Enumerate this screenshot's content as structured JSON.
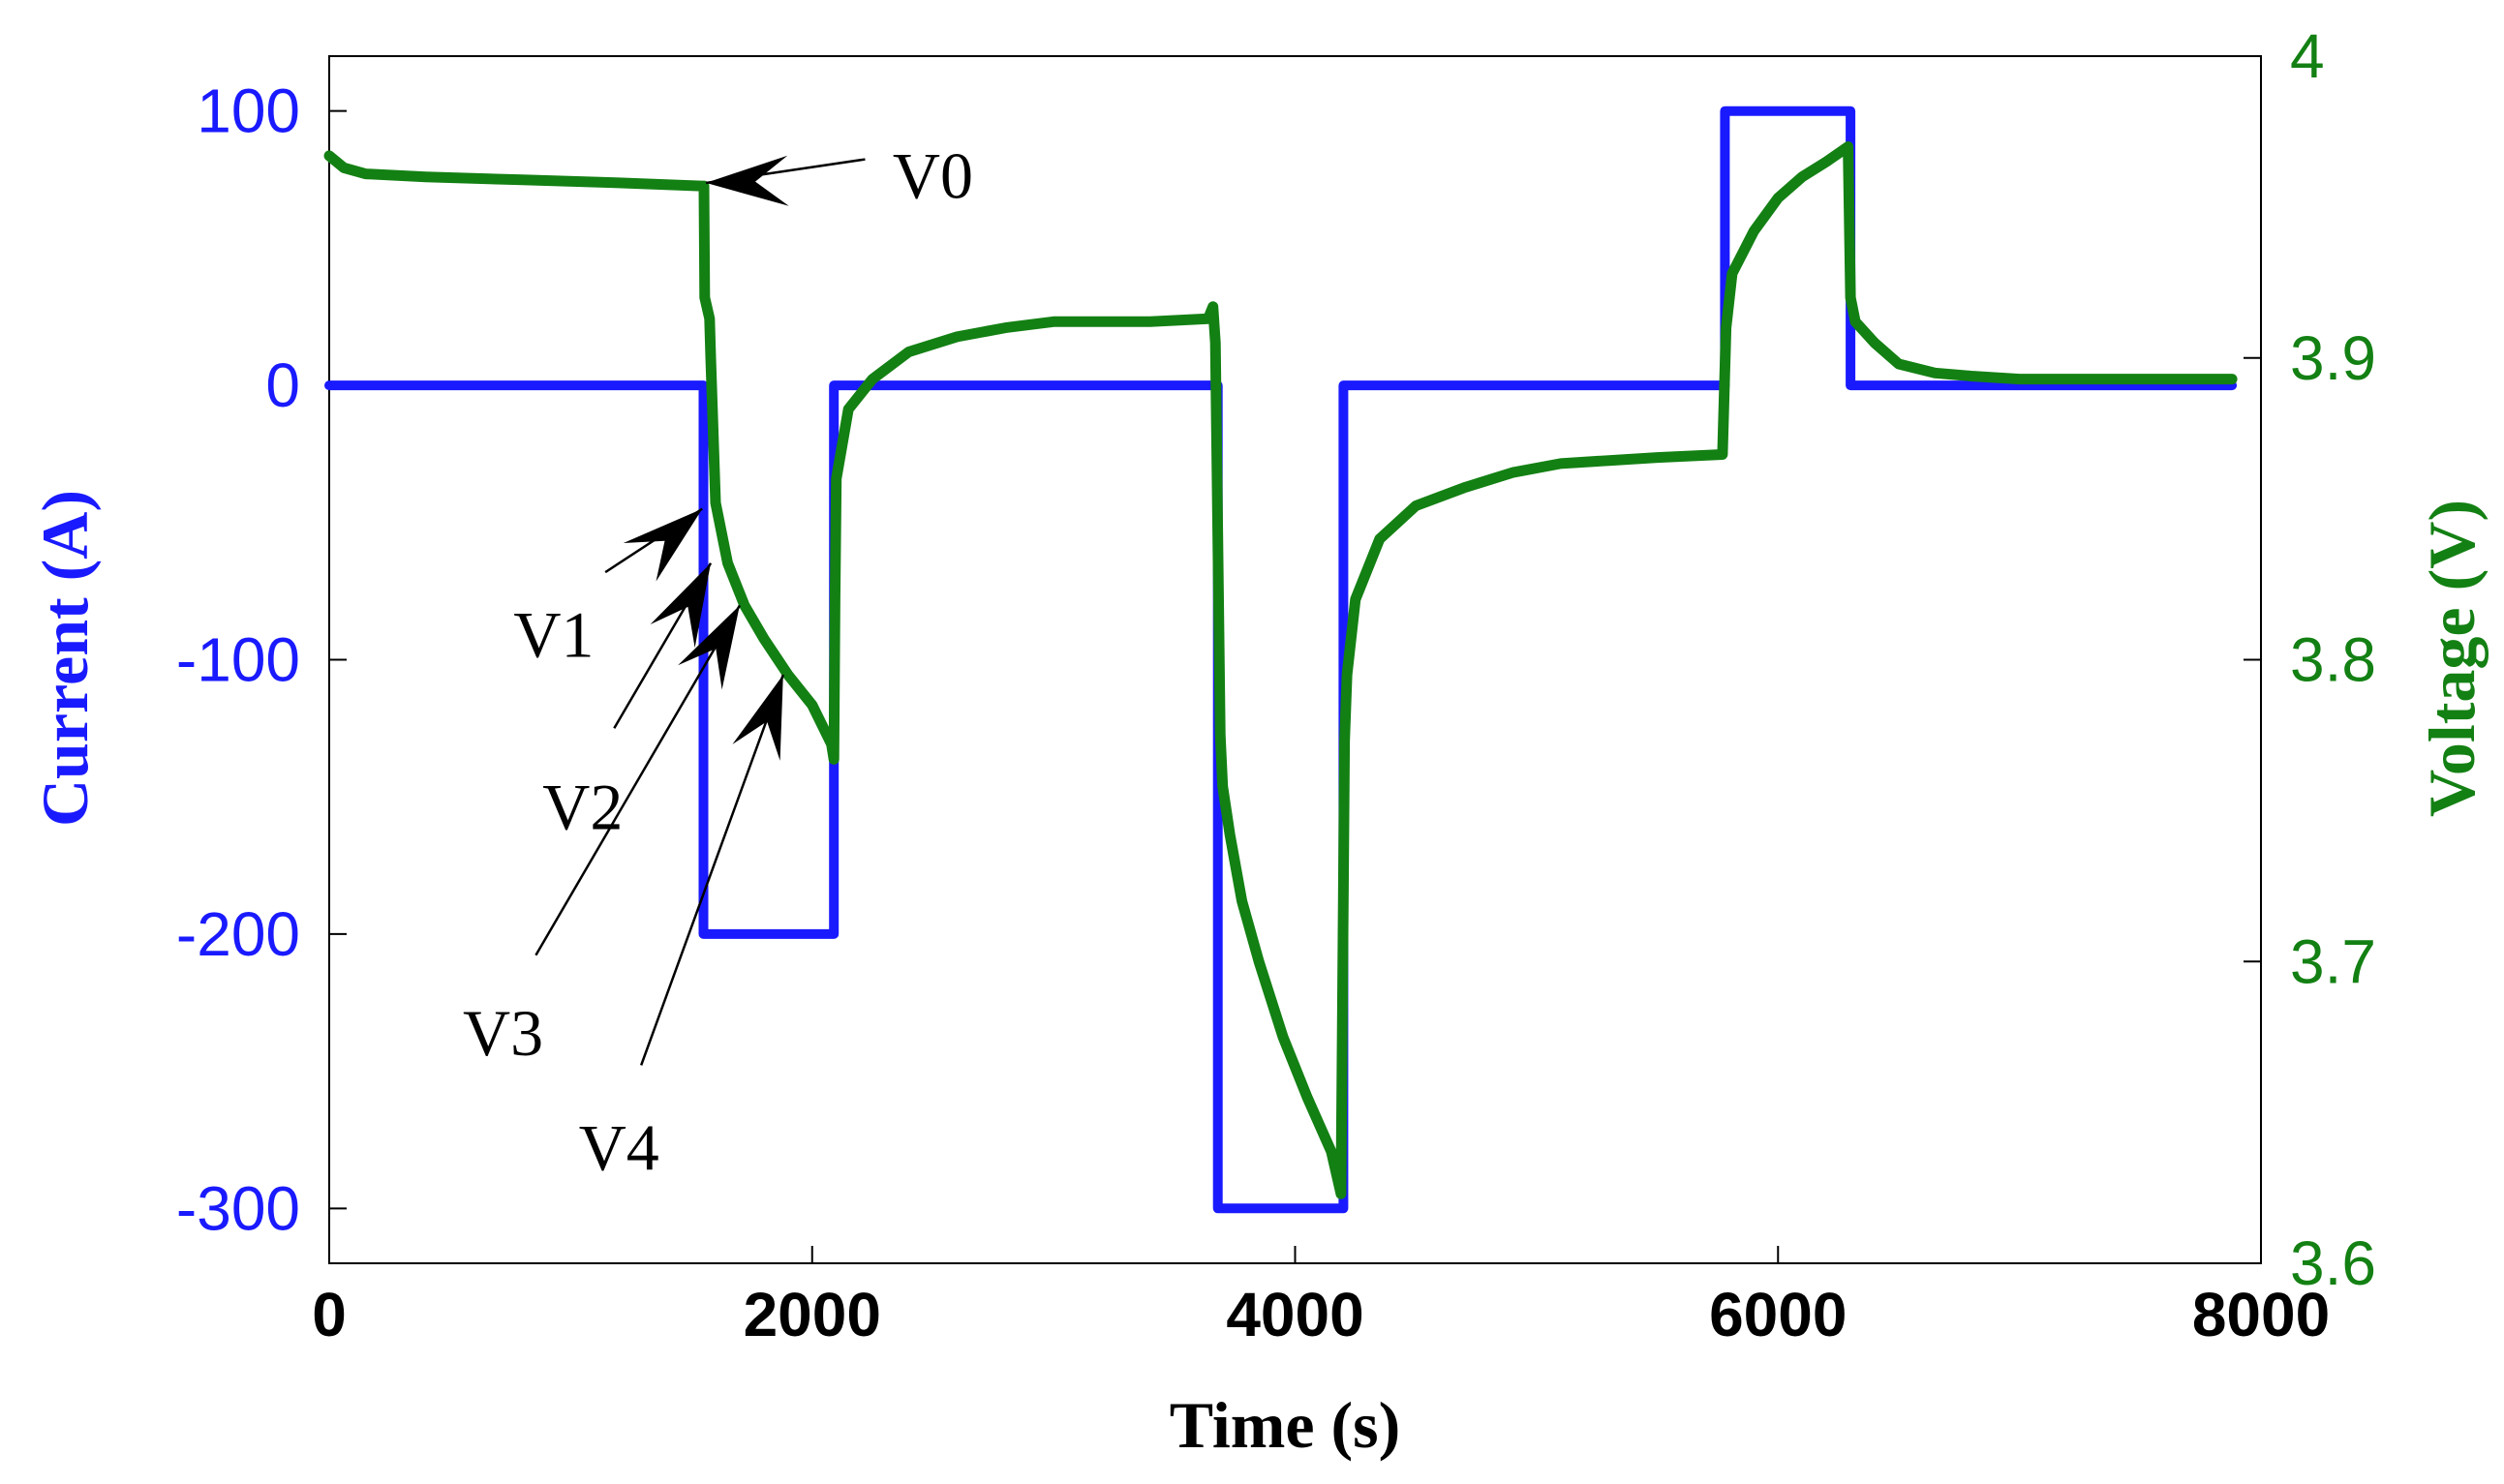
{
  "chart_data": {
    "type": "line",
    "title": "",
    "xlabel": "Time (s)",
    "ylabel_left": "Current (A)",
    "ylabel_right": "Voltage (V)",
    "xlim": [
      0,
      8000
    ],
    "ylim_left": [
      -320,
      120
    ],
    "ylim_right": [
      3.6,
      4.0
    ],
    "x_ticks": [
      "0",
      "2000",
      "4000",
      "6000",
      "8000"
    ],
    "x_tick_values": [
      0,
      2000,
      4000,
      6000,
      8000
    ],
    "left_ticks": [
      "100",
      "0",
      "-100",
      "-200",
      "-300"
    ],
    "left_tick_values": [
      100,
      0,
      -100,
      -200,
      -300
    ],
    "right_ticks": [
      "4",
      "3.9",
      "3.8",
      "3.7",
      "3.6"
    ],
    "right_tick_values": [
      4.0,
      3.9,
      3.8,
      3.7,
      3.6
    ],
    "colors": {
      "current": "#1a1aff",
      "voltage": "#138013",
      "annotation": "#000000"
    },
    "series": [
      {
        "name": "Current",
        "axis": "left",
        "color": "#1a1aff",
        "x": [
          0,
          1550,
          1550,
          2090,
          2090,
          3680,
          3680,
          4200,
          4200,
          5780,
          5780,
          6300,
          6300,
          7880
        ],
        "y": [
          0,
          0,
          -200,
          -200,
          0,
          0,
          -300,
          -300,
          0,
          0,
          100,
          100,
          0,
          0
        ]
      },
      {
        "name": "Voltage",
        "axis": "right",
        "color": "#138013",
        "x": [
          0,
          60,
          150,
          400,
          800,
          1200,
          1540,
          1552,
          1555,
          1575,
          1580,
          1600,
          1650,
          1720,
          1800,
          1900,
          2000,
          2080,
          2090,
          2095,
          2100,
          2150,
          2250,
          2400,
          2600,
          2800,
          3000,
          3200,
          3400,
          3640,
          3660,
          3670,
          3690,
          3700,
          3730,
          3780,
          3850,
          3950,
          4050,
          4150,
          4190,
          4205,
          4215,
          4250,
          4350,
          4500,
          4700,
          4900,
          5100,
          5300,
          5500,
          5770,
          5785,
          5810,
          5900,
          6000,
          6100,
          6200,
          6290,
          6300,
          6320,
          6400,
          6500,
          6650,
          6800,
          7000,
          7200,
          7400,
          7600,
          7880
        ],
        "y": [
          3.967,
          3.963,
          3.961,
          3.96,
          3.959,
          3.958,
          3.957,
          3.957,
          3.92,
          3.913,
          3.9,
          3.852,
          3.832,
          3.818,
          3.807,
          3.795,
          3.785,
          3.772,
          3.767,
          3.82,
          3.86,
          3.883,
          3.893,
          3.902,
          3.907,
          3.91,
          3.912,
          3.912,
          3.912,
          3.913,
          3.917,
          3.905,
          3.775,
          3.758,
          3.742,
          3.72,
          3.7,
          3.675,
          3.655,
          3.637,
          3.623,
          3.773,
          3.795,
          3.82,
          3.84,
          3.851,
          3.857,
          3.862,
          3.865,
          3.866,
          3.867,
          3.868,
          3.91,
          3.928,
          3.942,
          3.953,
          3.96,
          3.965,
          3.97,
          3.92,
          3.912,
          3.905,
          3.898,
          3.895,
          3.894,
          3.893,
          3.893,
          3.893,
          3.893,
          3.893
        ]
      }
    ],
    "annotations": [
      {
        "label": "V0",
        "x": 1560,
        "y_voltage": 3.958,
        "text_x": 2500,
        "text_y_voltage": 3.96
      },
      {
        "label": "V1",
        "x": 1545,
        "y_voltage": 3.85,
        "text_x": 930,
        "text_y_voltage": 3.808
      },
      {
        "label": "V2",
        "x": 1580,
        "y_voltage": 3.832,
        "text_x": 1050,
        "text_y_voltage": 3.751
      },
      {
        "label": "V3",
        "x": 1700,
        "y_voltage": 3.818,
        "text_x": 720,
        "text_y_voltage": 3.676
      },
      {
        "label": "V4",
        "x": 1880,
        "y_voltage": 3.795,
        "text_x": 1200,
        "text_y_voltage": 3.638
      }
    ]
  }
}
